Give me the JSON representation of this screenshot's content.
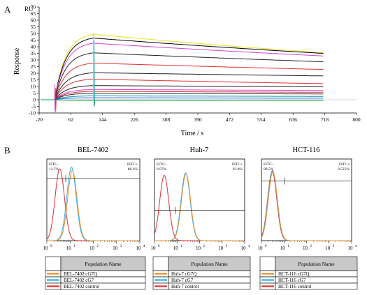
{
  "panel_a": {
    "letter": "A",
    "unit": "RU",
    "ylabel": "Response",
    "xlabel": "Time / s",
    "chart_data": {
      "type": "line",
      "xlabel": "Time / s",
      "ylabel": "Response",
      "y_unit": "RU",
      "xlim": [
        -20,
        800
      ],
      "ylim": [
        -10,
        70
      ],
      "xticks": [
        -20,
        62,
        144,
        226,
        308,
        390,
        472,
        554,
        636,
        718,
        800
      ],
      "yticks": [
        -10,
        -5,
        0,
        5,
        10,
        15,
        20,
        25,
        30,
        35,
        40,
        45,
        50,
        55,
        60,
        65,
        70
      ],
      "injection_start": 20,
      "injection_end": 120,
      "curve_end": 718,
      "series": [
        {
          "color": "#e8e020",
          "values": {
            "plateau": 51,
            "end": 36.5
          }
        },
        {
          "color": "#000000",
          "values": {
            "plateau": 48,
            "end": 36
          }
        },
        {
          "color": "#d040d0",
          "values": {
            "plateau": 44,
            "end": 34
          }
        },
        {
          "color": "#202020",
          "values": {
            "plateau": 36.5,
            "end": 29.5
          }
        },
        {
          "color": "#e03030",
          "values": {
            "plateau": 28.5,
            "end": 23.5
          }
        },
        {
          "color": "#202020",
          "values": {
            "plateau": 21,
            "end": 18.5
          }
        },
        {
          "color": "#e03030",
          "values": {
            "plateau": 16,
            "end": 12.5
          }
        },
        {
          "color": "#202020",
          "values": {
            "plateau": 11,
            "end": 10
          }
        },
        {
          "color": "#d040d0",
          "values": {
            "plateau": 8,
            "end": 7.2
          }
        },
        {
          "color": "#e03030",
          "values": {
            "plateau": 6.5,
            "end": 5.8
          }
        },
        {
          "color": "#303030",
          "values": {
            "plateau": 5,
            "end": 4.5
          }
        },
        {
          "color": "#00a0a0",
          "values": {
            "plateau": 3,
            "end": 2.6
          }
        },
        {
          "color": "#2050ff",
          "values": {
            "plateau": 1.5,
            "end": 1.2
          }
        },
        {
          "color": "#00a040",
          "values": {
            "plateau": -0.5,
            "end": -0.3
          }
        }
      ]
    }
  },
  "panel_b": {
    "letter": "B",
    "chart_data": [
      {
        "type": "histogram",
        "title": "BEL-7402",
        "xscale": "log",
        "xlim": [
          1,
          10000
        ],
        "x_tick_labels": [
          "10",
          "10",
          "10",
          "10",
          "10"
        ],
        "x_tick_exponents": [
          "0",
          "1",
          "2",
          "3",
          "4"
        ],
        "gate_left": {
          "label": "FITC-",
          "value": "13.7%"
        },
        "gate_right": {
          "label": "FITC+",
          "value": "86.3%"
        },
        "gate_split": 6.5,
        "gate_level": 0.76,
        "peaks": [
          {
            "name": "BEL-7402 control",
            "color": "#e03030",
            "center": 3.6,
            "height": 0.88
          },
          {
            "name": "BEL-7402 cG7",
            "color": "#30b0e8",
            "center": 11.5,
            "height": 0.9
          },
          {
            "name": "BEL-7402 cG7Q",
            "color": "#e8902a",
            "center": 12.5,
            "height": 0.86
          }
        ],
        "legend": {
          "header": "Population Name",
          "rows": [
            {
              "label": "BEL-7402 cG7Q",
              "color": "#e8902a"
            },
            {
              "label": "BEL-7402 cG7",
              "color": "#30b0e8"
            },
            {
              "label": "BEL-7402 control",
              "color": "#e03030"
            }
          ]
        }
      },
      {
        "type": "histogram",
        "title": "Huh-7",
        "xscale": "log",
        "xlim": [
          1,
          10000
        ],
        "x_tick_labels": [
          "10",
          "10",
          "10",
          "10",
          "10"
        ],
        "x_tick_exponents": [
          "0",
          "1",
          "2",
          "3",
          "4"
        ],
        "gate_left": {
          "label": "FITC-",
          "value": "6.97%"
        },
        "gate_right": {
          "label": "FITC+",
          "value": "93.0%"
        },
        "gate_split": 8.5,
        "gate_level": 0.37,
        "peaks": [
          {
            "name": "Huh-7 control",
            "color": "#e03030",
            "center": 2.7,
            "height": 0.8
          },
          {
            "name": "Huh-7 cG7",
            "color": "#30b0e8",
            "center": 24,
            "height": 0.83
          },
          {
            "name": "Huh-7 cG7Q",
            "color": "#e8902a",
            "center": 25,
            "height": 0.82
          }
        ],
        "legend": {
          "header": "Population Name",
          "rows": [
            {
              "label": "Huh-7 cG7Q",
              "color": "#e8902a"
            },
            {
              "label": "Huh-7 cG7",
              "color": "#30b0e8"
            },
            {
              "label": "Huh-7 control",
              "color": "#e03030"
            }
          ]
        }
      },
      {
        "type": "histogram",
        "title": "HCT-116",
        "xscale": "log",
        "xlim": [
          1,
          10000
        ],
        "x_tick_labels": [
          "10",
          "10",
          "10",
          "10",
          "10"
        ],
        "x_tick_exponents": [
          "0",
          "1",
          "2",
          "3",
          "4"
        ],
        "gate_left": {
          "label": "FITC-",
          "value": "99.5%"
        },
        "gate_right": {
          "label": "FITC+",
          "value": "0.525%"
        },
        "gate_split": 11,
        "gate_level": 0.73,
        "peaks": [
          {
            "name": "HCT-116 control",
            "color": "#e03030",
            "center": 3.0,
            "height": 0.85
          },
          {
            "name": "HCT-116 cG7",
            "color": "#30b0e8",
            "center": 3.1,
            "height": 0.86
          },
          {
            "name": "HCT-116 cG7Q",
            "color": "#e8902a",
            "center": 3.2,
            "height": 0.84
          }
        ],
        "legend": {
          "header": "Population Name",
          "rows": [
            {
              "label": "HCT-116 cG7Q",
              "color": "#e8902a"
            },
            {
              "label": "HCT-116 cG7",
              "color": "#30b0e8"
            },
            {
              "label": "HCT-116 control",
              "color": "#e03030"
            }
          ]
        }
      }
    ]
  }
}
